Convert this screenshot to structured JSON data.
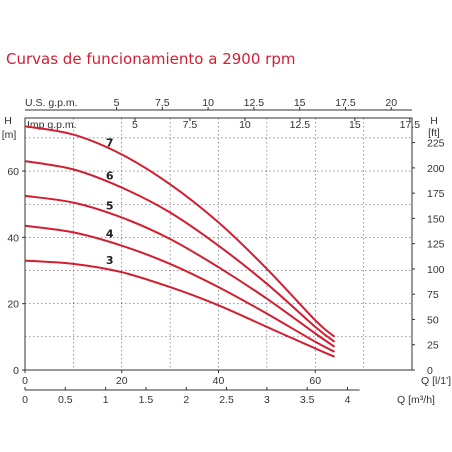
{
  "chart_data": {
    "type": "line",
    "title": "Curvas de funcionamiento a 2900 rpm",
    "x_axes": {
      "us_gpm": {
        "label": "U.S. g.p.m.",
        "ticks": [
          "5",
          "7.5",
          "10",
          "12.5",
          "15",
          "17.5",
          "20"
        ],
        "values": [
          5,
          7.5,
          10,
          12.5,
          15,
          17.5,
          20
        ]
      },
      "imp_gpm": {
        "label": "Imp g.p.m.",
        "ticks": [
          "5",
          "7.5",
          "10",
          "12.5",
          "15",
          "17.5"
        ],
        "values": [
          5,
          7.5,
          10,
          12.5,
          15,
          17.5
        ]
      },
      "lmin": {
        "label": "Q [l/1']",
        "ticks": [
          "0",
          "20",
          "40",
          "60"
        ],
        "values": [
          0,
          20,
          40,
          60
        ],
        "range": [
          0,
          80
        ]
      },
      "m3h": {
        "label": "Q [m³/h]",
        "ticks": [
          "0",
          "0.5",
          "1",
          "1.5",
          "2",
          "2.5",
          "3",
          "3.5",
          "4"
        ],
        "values": [
          0,
          0.5,
          1,
          1.5,
          2,
          2.5,
          3,
          3.5,
          4
        ]
      }
    },
    "y_axes": {
      "left": {
        "label": "H [m]",
        "ticks": [
          "0",
          "20",
          "40",
          "60"
        ],
        "values": [
          0,
          20,
          40,
          60
        ],
        "range": [
          0,
          76
        ]
      },
      "right": {
        "label": "H [ft]",
        "ticks": [
          "0",
          "25",
          "50",
          "75",
          "100",
          "125",
          "150",
          "175",
          "200",
          "225"
        ],
        "values": [
          0,
          25,
          50,
          75,
          100,
          125,
          150,
          175,
          200,
          225
        ]
      }
    },
    "x_unit_for_series": "l/min",
    "y_unit_for_series": "m",
    "grid": true,
    "series": [
      {
        "name": "3",
        "x": [
          0,
          10,
          20,
          30,
          40,
          50,
          60,
          64
        ],
        "y": [
          33,
          32,
          29.5,
          25,
          19.5,
          13,
          6.5,
          4
        ]
      },
      {
        "name": "4",
        "x": [
          0,
          10,
          20,
          30,
          40,
          50,
          60,
          64
        ],
        "y": [
          43.5,
          41.5,
          37.5,
          32,
          25,
          17,
          8.5,
          5.5
        ]
      },
      {
        "name": "5",
        "x": [
          0,
          10,
          20,
          30,
          40,
          50,
          60,
          64
        ],
        "y": [
          52.5,
          50.5,
          46,
          39.5,
          31,
          21.5,
          11,
          7
        ]
      },
      {
        "name": "6",
        "x": [
          0,
          10,
          20,
          30,
          40,
          50,
          60,
          64
        ],
        "y": [
          63,
          60.5,
          55,
          47.5,
          37.5,
          26,
          13,
          8.5
        ]
      },
      {
        "name": "7",
        "x": [
          0,
          10,
          20,
          30,
          40,
          50,
          60,
          64
        ],
        "y": [
          73.5,
          71,
          65,
          56,
          44.5,
          30.5,
          15,
          10
        ]
      }
    ]
  }
}
